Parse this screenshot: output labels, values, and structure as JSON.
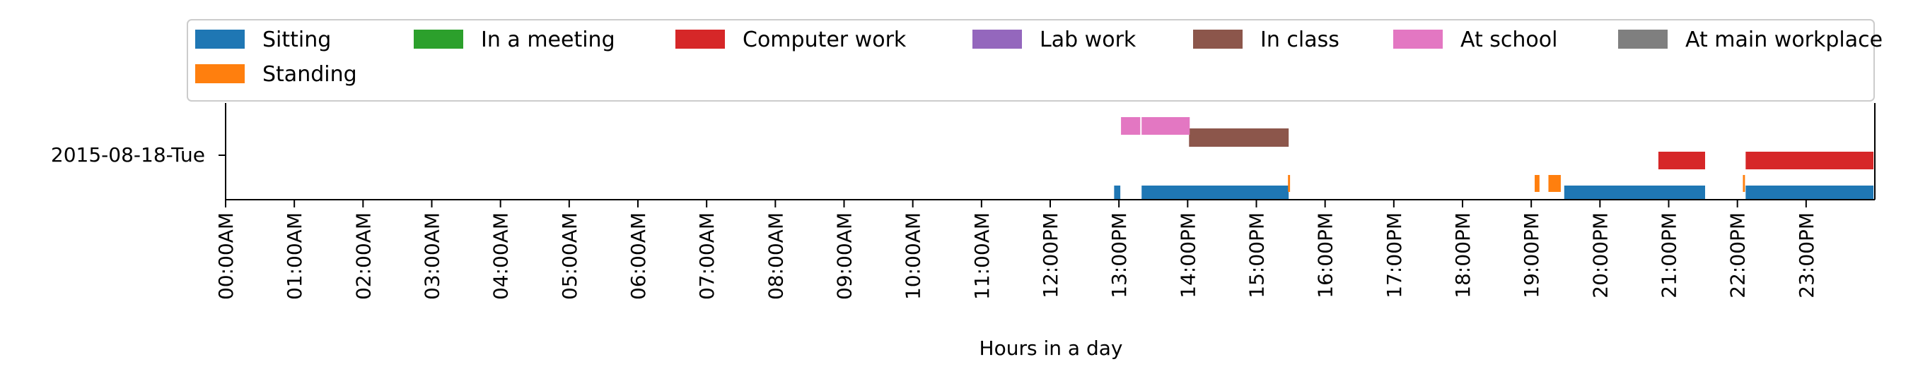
{
  "chart_data": {
    "type": "timeline",
    "title": "",
    "xlabel": "Hours in a day",
    "ylabel": "",
    "xlim": [
      0,
      24
    ],
    "date_label": "2015-08-18-Tue",
    "x_ticks": [
      0,
      1,
      2,
      3,
      4,
      5,
      6,
      7,
      8,
      9,
      10,
      11,
      12,
      13,
      14,
      15,
      16,
      17,
      18,
      19,
      20,
      21,
      22,
      23
    ],
    "x_tick_labels": [
      "00:00AM",
      "01:00AM",
      "02:00AM",
      "03:00AM",
      "04:00AM",
      "05:00AM",
      "06:00AM",
      "07:00AM",
      "08:00AM",
      "09:00AM",
      "10:00AM",
      "11:00AM",
      "12:00PM",
      "13:00PM",
      "14:00PM",
      "15:00PM",
      "16:00PM",
      "17:00PM",
      "18:00PM",
      "19:00PM",
      "20:00PM",
      "21:00PM",
      "22:00PM",
      "23:00PM"
    ],
    "legend_position": "top",
    "legend": [
      {
        "name": "Sitting",
        "color": "#1f77b4"
      },
      {
        "name": "In a meeting",
        "color": "#2ca02c"
      },
      {
        "name": "Computer work",
        "color": "#d62728"
      },
      {
        "name": "Lab work",
        "color": "#9467bd"
      },
      {
        "name": "In class",
        "color": "#8c564b"
      },
      {
        "name": "At school",
        "color": "#e377c2"
      },
      {
        "name": "At main workplace",
        "color": "#7f7f7f"
      },
      {
        "name": "Standing",
        "color": "#ff7f0e"
      }
    ],
    "series": [
      {
        "name": "Sitting",
        "color": "#1f77b4",
        "segments": [
          [
            12.93,
            13.02
          ],
          [
            13.33,
            15.47
          ],
          [
            19.48,
            21.53
          ],
          [
            22.12,
            23.98
          ]
        ]
      },
      {
        "name": "Standing",
        "color": "#ff7f0e",
        "segments": [
          [
            15.46,
            15.49
          ],
          [
            19.05,
            19.12
          ],
          [
            19.25,
            19.43
          ],
          [
            22.08,
            22.11
          ]
        ]
      },
      {
        "name": "Computer work",
        "color": "#d62728",
        "segments": [
          [
            20.85,
            21.53
          ],
          [
            22.12,
            23.98
          ]
        ]
      },
      {
        "name": "In class",
        "color": "#8c564b",
        "segments": [
          [
            14.02,
            15.47
          ]
        ]
      },
      {
        "name": "At school",
        "color": "#e377c2",
        "segments": [
          [
            13.03,
            13.31
          ],
          [
            13.33,
            14.03
          ]
        ]
      }
    ]
  }
}
